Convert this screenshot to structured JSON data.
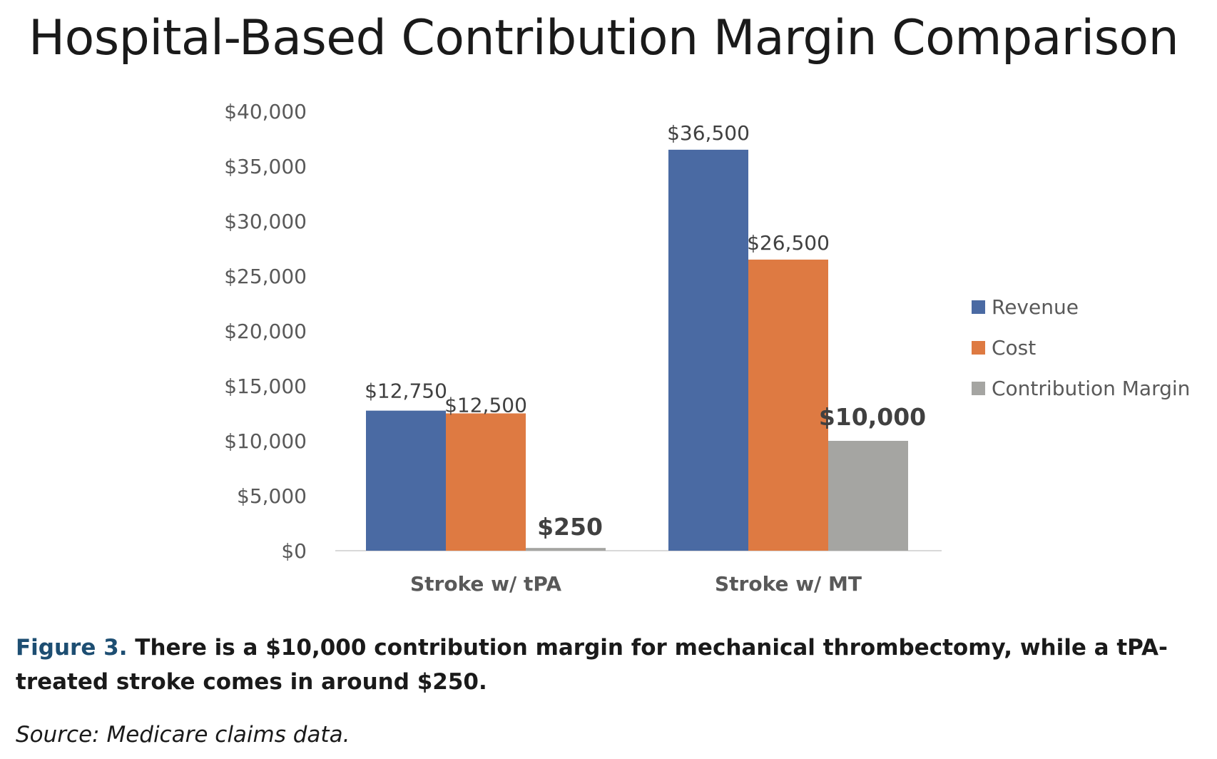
{
  "chart_data": {
    "type": "bar",
    "title": "Hospital-Based Contribution Margin Comparison",
    "categories": [
      "Stroke w/ tPA",
      "Stroke w/ MT"
    ],
    "series": [
      {
        "name": "Revenue",
        "values": [
          12750,
          36500
        ],
        "color": "#4a6aa3",
        "labels": [
          "$12,750",
          "$36,500"
        ],
        "label_bold": false
      },
      {
        "name": "Cost",
        "values": [
          12500,
          26500
        ],
        "color": "#de7a42",
        "labels": [
          "$12,500",
          "$26,500"
        ],
        "label_bold": false
      },
      {
        "name": "Contribution Margin",
        "values": [
          250,
          10000
        ],
        "color": "#a5a5a2",
        "labels": [
          "$250",
          "$10,000"
        ],
        "label_bold": true
      }
    ],
    "ylim": [
      0,
      40000
    ],
    "yticks": [
      0,
      5000,
      10000,
      15000,
      20000,
      25000,
      30000,
      35000,
      40000
    ],
    "ytick_labels": [
      "$0",
      "$5,000",
      "$10,000",
      "$15,000",
      "$20,000",
      "$25,000",
      "$30,000",
      "$35,000",
      "$40,000"
    ],
    "xlabel": "",
    "ylabel": "",
    "grid": false,
    "legend_position": "right"
  },
  "caption": {
    "label": "Figure 3.",
    "text": " There is a $10,000 contribution margin for mechanical thrombectomy, while a tPA-treated stroke comes in around $250."
  },
  "source": "Source: Medicare claims data."
}
